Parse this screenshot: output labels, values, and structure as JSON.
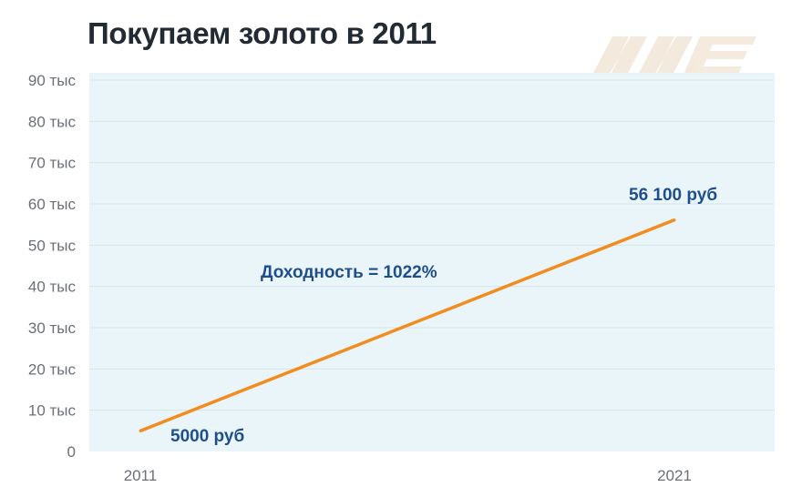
{
  "title": "Покупаем золото в 2011",
  "logo": {
    "icon": "brand-logo-watermark"
  },
  "colors": {
    "plot_background": "#eaf5f9",
    "grid": "#d6e6ee",
    "line": "#f28c1e",
    "annotation": "#1f4e8c"
  },
  "chart_data": {
    "type": "line",
    "title": "Покупаем золото в 2011",
    "x": [
      "2011",
      "2021"
    ],
    "series": [
      {
        "values": [
          5000,
          56100
        ]
      }
    ],
    "ylim": [
      0,
      90000
    ],
    "y_ticks": [
      {
        "value": 0,
        "label": "0"
      },
      {
        "value": 10000,
        "label": "10 тыс"
      },
      {
        "value": 20000,
        "label": "20 тыс"
      },
      {
        "value": 30000,
        "label": "30 тыс"
      },
      {
        "value": 40000,
        "label": "40 тыс"
      },
      {
        "value": 50000,
        "label": "50 тыс"
      },
      {
        "value": 60000,
        "label": "60 тыс"
      },
      {
        "value": 70000,
        "label": "70 тыс"
      },
      {
        "value": 80000,
        "label": "80 тыс"
      },
      {
        "value": 90000,
        "label": "90 тыс"
      }
    ],
    "x_tick_labels": [
      "2011",
      "2021"
    ],
    "annotations": {
      "start": "5000 руб",
      "end": "56 100 руб",
      "return": "Доходность = 1022%"
    },
    "grid": true,
    "legend": "none"
  }
}
